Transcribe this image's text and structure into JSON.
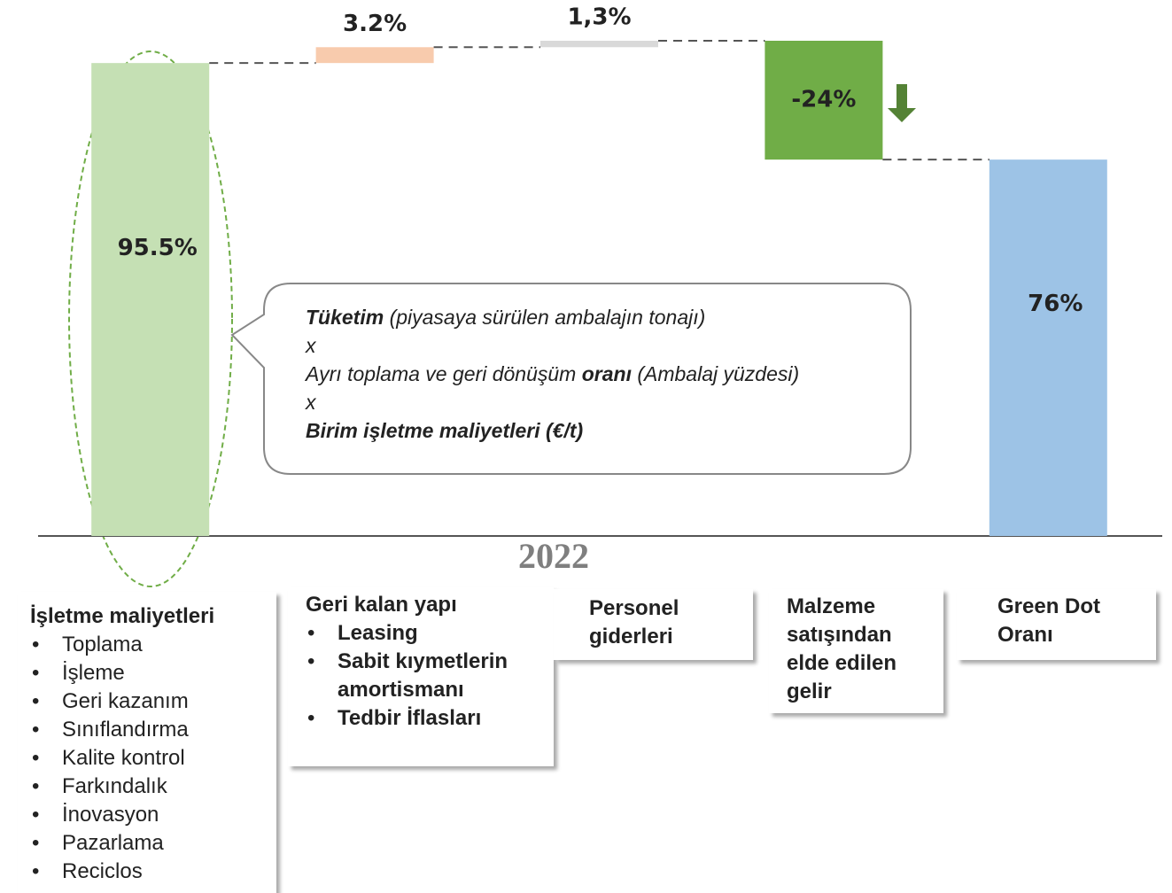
{
  "chart_data": {
    "type": "waterfall",
    "xlabel": "2022",
    "categories": [
      "İşletme maliyetleri",
      "Geri kalan yapı",
      "Personel giderleri",
      "Malzeme satışından elde edilen gelir",
      "Green Dot Oranı"
    ],
    "values": [
      95.5,
      3.2,
      1.3,
      -24,
      76
    ],
    "value_labels": [
      "95.5%",
      "3.2%",
      "1,3%",
      "-24%",
      "76%"
    ],
    "totals": [
      true,
      false,
      false,
      false,
      true
    ],
    "colors": [
      "#c5e0b4",
      "#f8cbad",
      "#d9d9d9",
      "#70ad47",
      "#9dc3e6"
    ],
    "ylim": [
      0,
      100
    ],
    "details": [
      [
        "Toplama",
        "İşleme",
        "Geri kazanım",
        "Sınıflandırma",
        "Kalite kontrol",
        "Farkındalık",
        "İnovasyon",
        "Pazarlama",
        "Reciclos"
      ],
      [
        "Leasing",
        "Sabit kıymetlerin amortismanı",
        "Tedbir İflasları"
      ],
      [],
      [],
      []
    ],
    "callout": [
      [
        {
          "text": "Tüketim",
          "bold": true
        },
        {
          "text": " (piyasaya sürülen ambalajın tonajı)",
          "bold": false
        }
      ],
      [
        {
          "text": "x",
          "bold": false
        }
      ],
      [
        {
          "text": "Ayrı toplama ve geri dönüşüm ",
          "bold": false
        },
        {
          "text": "oranı",
          "bold": true
        },
        {
          "text": " (Ambalaj yüzdesi)",
          "bold": false
        }
      ],
      [
        {
          "text": "x",
          "bold": false
        }
      ],
      [
        {
          "text": "Birim işletme maliyetleri (€/t)",
          "bold": true
        }
      ]
    ]
  }
}
